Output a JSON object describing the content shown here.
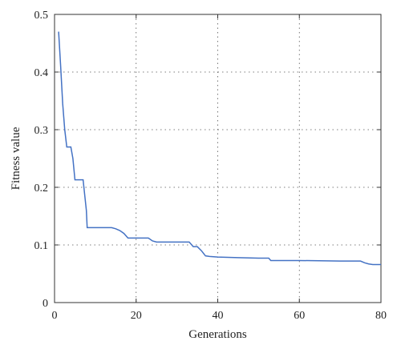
{
  "chart_data": {
    "type": "line",
    "xlabel": "Generations",
    "ylabel": "Fitness value",
    "xlim": [
      0,
      80
    ],
    "ylim": [
      0,
      0.5
    ],
    "x_ticks": [
      0,
      20,
      40,
      60,
      80
    ],
    "y_ticks": [
      0,
      0.1,
      0.2,
      0.3,
      0.4,
      0.5
    ],
    "x_tick_labels": [
      "0",
      "20",
      "40",
      "60",
      "80"
    ],
    "y_tick_labels": [
      "0",
      "0.1",
      "0.2",
      "0.3",
      "0.4",
      "0.5"
    ],
    "grid": "dotted",
    "line_color": "#4472c4",
    "series": [
      {
        "x": [
          1,
          1.5,
          2,
          2.5,
          3,
          4,
          4.5,
          5,
          6,
          7,
          7.8,
          8,
          10,
          14,
          15,
          16,
          17,
          18,
          19,
          23,
          24,
          25,
          30,
          33,
          34,
          35,
          36,
          37,
          38,
          40,
          45,
          50,
          52.5,
          53,
          60,
          70,
          75,
          76,
          77,
          78,
          80
        ],
        "y": [
          0.47,
          0.41,
          0.345,
          0.3,
          0.27,
          0.27,
          0.25,
          0.213,
          0.213,
          0.213,
          0.16,
          0.13,
          0.13,
          0.13,
          0.128,
          0.125,
          0.12,
          0.112,
          0.112,
          0.112,
          0.107,
          0.105,
          0.105,
          0.105,
          0.097,
          0.097,
          0.09,
          0.081,
          0.08,
          0.079,
          0.078,
          0.077,
          0.077,
          0.073,
          0.073,
          0.072,
          0.072,
          0.069,
          0.067,
          0.066,
          0.066
        ]
      }
    ]
  }
}
